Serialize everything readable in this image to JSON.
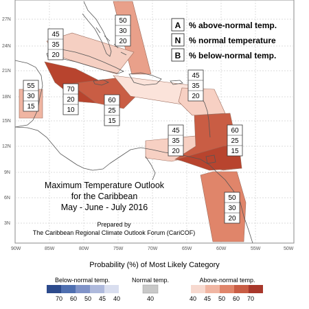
{
  "title_lines": [
    "Maximum Temperature Outlook",
    "for the Caribbean",
    "May - June - July 2016"
  ],
  "prepared_by": [
    "Prepared by",
    "The Caribbean Regional Climate Outlook Forum (CariCOF)"
  ],
  "legend": {
    "items": [
      {
        "letter": "A",
        "text": "% above-normal temp."
      },
      {
        "letter": "N",
        "text": "% normal temperature"
      },
      {
        "letter": "B",
        "text": "% below-normal temp."
      }
    ]
  },
  "lat_ticks": [
    "27N",
    "24N",
    "21N",
    "18N",
    "15N",
    "12N",
    "9N",
    "6N",
    "3N"
  ],
  "lon_ticks": [
    "90W",
    "85W",
    "80W",
    "75W",
    "70W",
    "65W",
    "60W",
    "55W",
    "50W"
  ],
  "boxes": [
    {
      "id": "bahamas-north",
      "values": [
        "45",
        "35",
        "20"
      ]
    },
    {
      "id": "florida",
      "values": [
        "50",
        "30",
        "20"
      ]
    },
    {
      "id": "belize",
      "values": [
        "55",
        "30",
        "15"
      ]
    },
    {
      "id": "western-caribbean",
      "values": [
        "70",
        "20",
        "10"
      ]
    },
    {
      "id": "jamaica",
      "values": [
        "60",
        "25",
        "15"
      ]
    },
    {
      "id": "hispaniola-pr",
      "values": [
        "45",
        "35",
        "20"
      ]
    },
    {
      "id": "abc-islands",
      "values": [
        "45",
        "35",
        "20"
      ]
    },
    {
      "id": "lesser-antilles",
      "values": [
        "60",
        "25",
        "15"
      ]
    },
    {
      "id": "guianas",
      "values": [
        "50",
        "30",
        "20"
      ]
    }
  ],
  "bar_caption": "Probability (%) of Most Likely Category",
  "bar_groups": {
    "below": {
      "label": "Below-normal temp.",
      "ticks": [
        "70",
        "60",
        "50",
        "45",
        "40"
      ],
      "colors": [
        "#2c4a8c",
        "#4f6fb0",
        "#8093c8",
        "#aeb9dc",
        "#d9deef"
      ]
    },
    "normal": {
      "label": "Normal temp.",
      "ticks": [
        "40"
      ],
      "colors": [
        "#c8c8c8"
      ]
    },
    "above": {
      "label": "Above-normal temp.",
      "ticks": [
        "40",
        "45",
        "50",
        "60",
        "70"
      ],
      "colors": [
        "#f7d9cf",
        "#f0b5a2",
        "#e0856a",
        "#c95d44",
        "#a8382b"
      ]
    }
  }
}
